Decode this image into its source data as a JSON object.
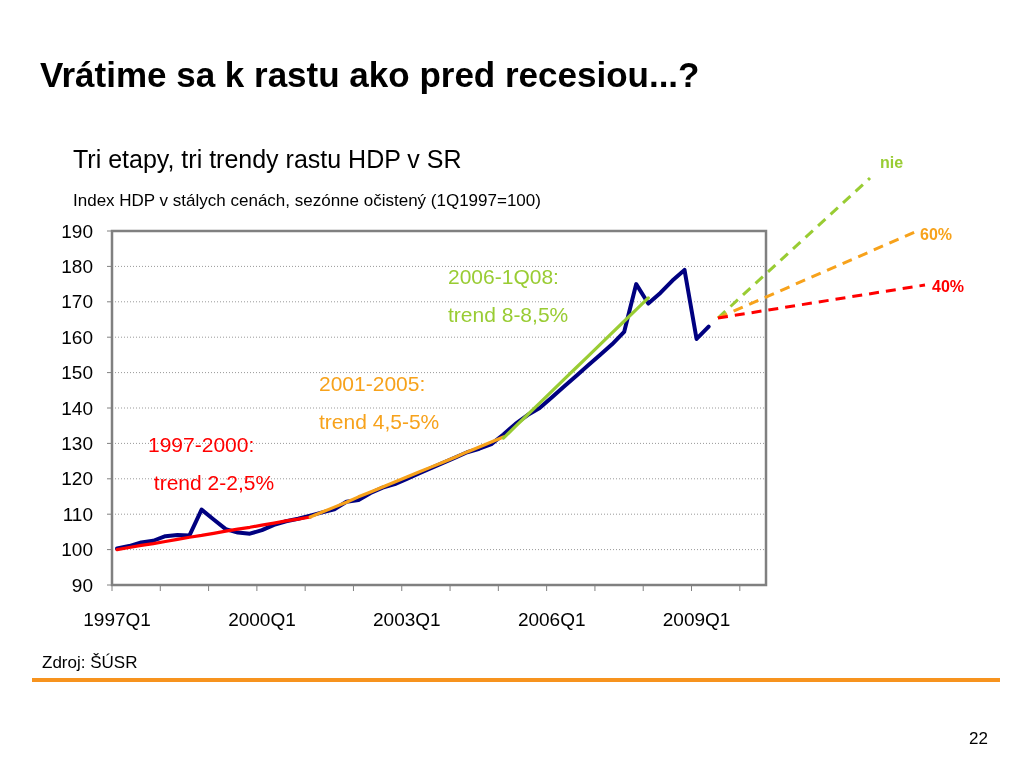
{
  "chart_data": {
    "type": "line",
    "title": "Vrátime sa k rastu ako pred recesiou...?",
    "subtitle": "Tri etapy, tri trendy rastu HDP v SR",
    "ylabel": "Index HDP v stálych cenách, sezónne očistený (1Q1997=100)",
    "categories": [
      "1997Q1",
      null,
      null,
      null,
      null,
      null,
      null,
      null,
      null,
      null,
      null,
      null,
      "2000Q1",
      null,
      null,
      null,
      null,
      null,
      null,
      null,
      null,
      null,
      null,
      null,
      "2003Q1",
      null,
      null,
      null,
      null,
      null,
      null,
      null,
      null,
      null,
      null,
      null,
      "2006Q1",
      null,
      null,
      null,
      null,
      null,
      null,
      null,
      null,
      null,
      null,
      null,
      "2009Q1",
      null,
      null,
      null,
      null,
      null
    ],
    "ylim": [
      90,
      190
    ],
    "yticks": [
      90,
      100,
      110,
      120,
      130,
      140,
      150,
      160,
      170,
      180,
      190
    ],
    "grid": "y",
    "marker": "none",
    "series": [
      {
        "color": "#000080",
        "values": [
          100.3,
          101,
          102,
          102.5,
          103.8,
          104.1,
          104,
          111.3,
          108.5,
          105.8,
          104.8,
          104.5,
          105.5,
          107,
          108,
          108.7,
          109.6,
          110.5,
          111.4,
          113.5,
          114,
          116,
          117.5,
          118.5,
          120,
          121.5,
          123,
          124.5,
          126,
          127.5,
          128.5,
          129.8,
          132.5,
          135.5,
          138,
          140,
          143,
          146,
          149,
          152,
          155,
          158,
          161.5,
          175,
          169.5,
          172.5,
          176,
          179,
          159.5,
          163,
          null,
          null,
          null,
          null
        ]
      },
      {
        "color": "#ff0000",
        "values": [
          100.0,
          100.6,
          101.2,
          101.7,
          102.3,
          102.9,
          103.5,
          104.0,
          104.6,
          105.2,
          105.8,
          106.3,
          106.9,
          107.5,
          108.1,
          108.6,
          109.2,
          null,
          null,
          null,
          null,
          null,
          null,
          null,
          null,
          null,
          null,
          null,
          null,
          null,
          null,
          null,
          null,
          null,
          null,
          null,
          null,
          null,
          null,
          null,
          null,
          null,
          null,
          null,
          null,
          null,
          null,
          null,
          null,
          null,
          null,
          null,
          null,
          null
        ]
      },
      {
        "color": "#f7a21b",
        "values": [
          null,
          null,
          null,
          null,
          null,
          null,
          null,
          null,
          null,
          null,
          null,
          null,
          null,
          null,
          null,
          null,
          109.2,
          110.6,
          112.0,
          113.4,
          114.9,
          116.3,
          117.7,
          119.1,
          120.5,
          121.9,
          123.3,
          124.7,
          126.1,
          127.6,
          129.0,
          130.4,
          131.8,
          null,
          null,
          null,
          null,
          null,
          null,
          null,
          null,
          null,
          null,
          null,
          null,
          null,
          null,
          null,
          null,
          null,
          null,
          null,
          null,
          null
        ]
      },
      {
        "color": "#99cc33",
        "values": [
          null,
          null,
          null,
          null,
          null,
          null,
          null,
          null,
          null,
          null,
          null,
          null,
          null,
          null,
          null,
          null,
          null,
          null,
          null,
          null,
          null,
          null,
          null,
          null,
          null,
          null,
          null,
          null,
          null,
          null,
          null,
          null,
          131.5,
          134.8,
          138.1,
          141.4,
          144.7,
          148.0,
          151.3,
          154.6,
          157.9,
          161.2,
          164.5,
          167.8,
          171.1,
          null,
          null,
          null,
          null,
          null,
          null,
          null,
          null,
          null
        ]
      }
    ],
    "annotations": [
      "1997-2000:\n trend 2-2,5%",
      "2001-2005:\ntrend 4,5-5%",
      "2006-1Q08:\ntrend 8-8,5%",
      "nie",
      "60%",
      "40%",
      "Zdroj: ŠÚSR",
      "22"
    ]
  }
}
